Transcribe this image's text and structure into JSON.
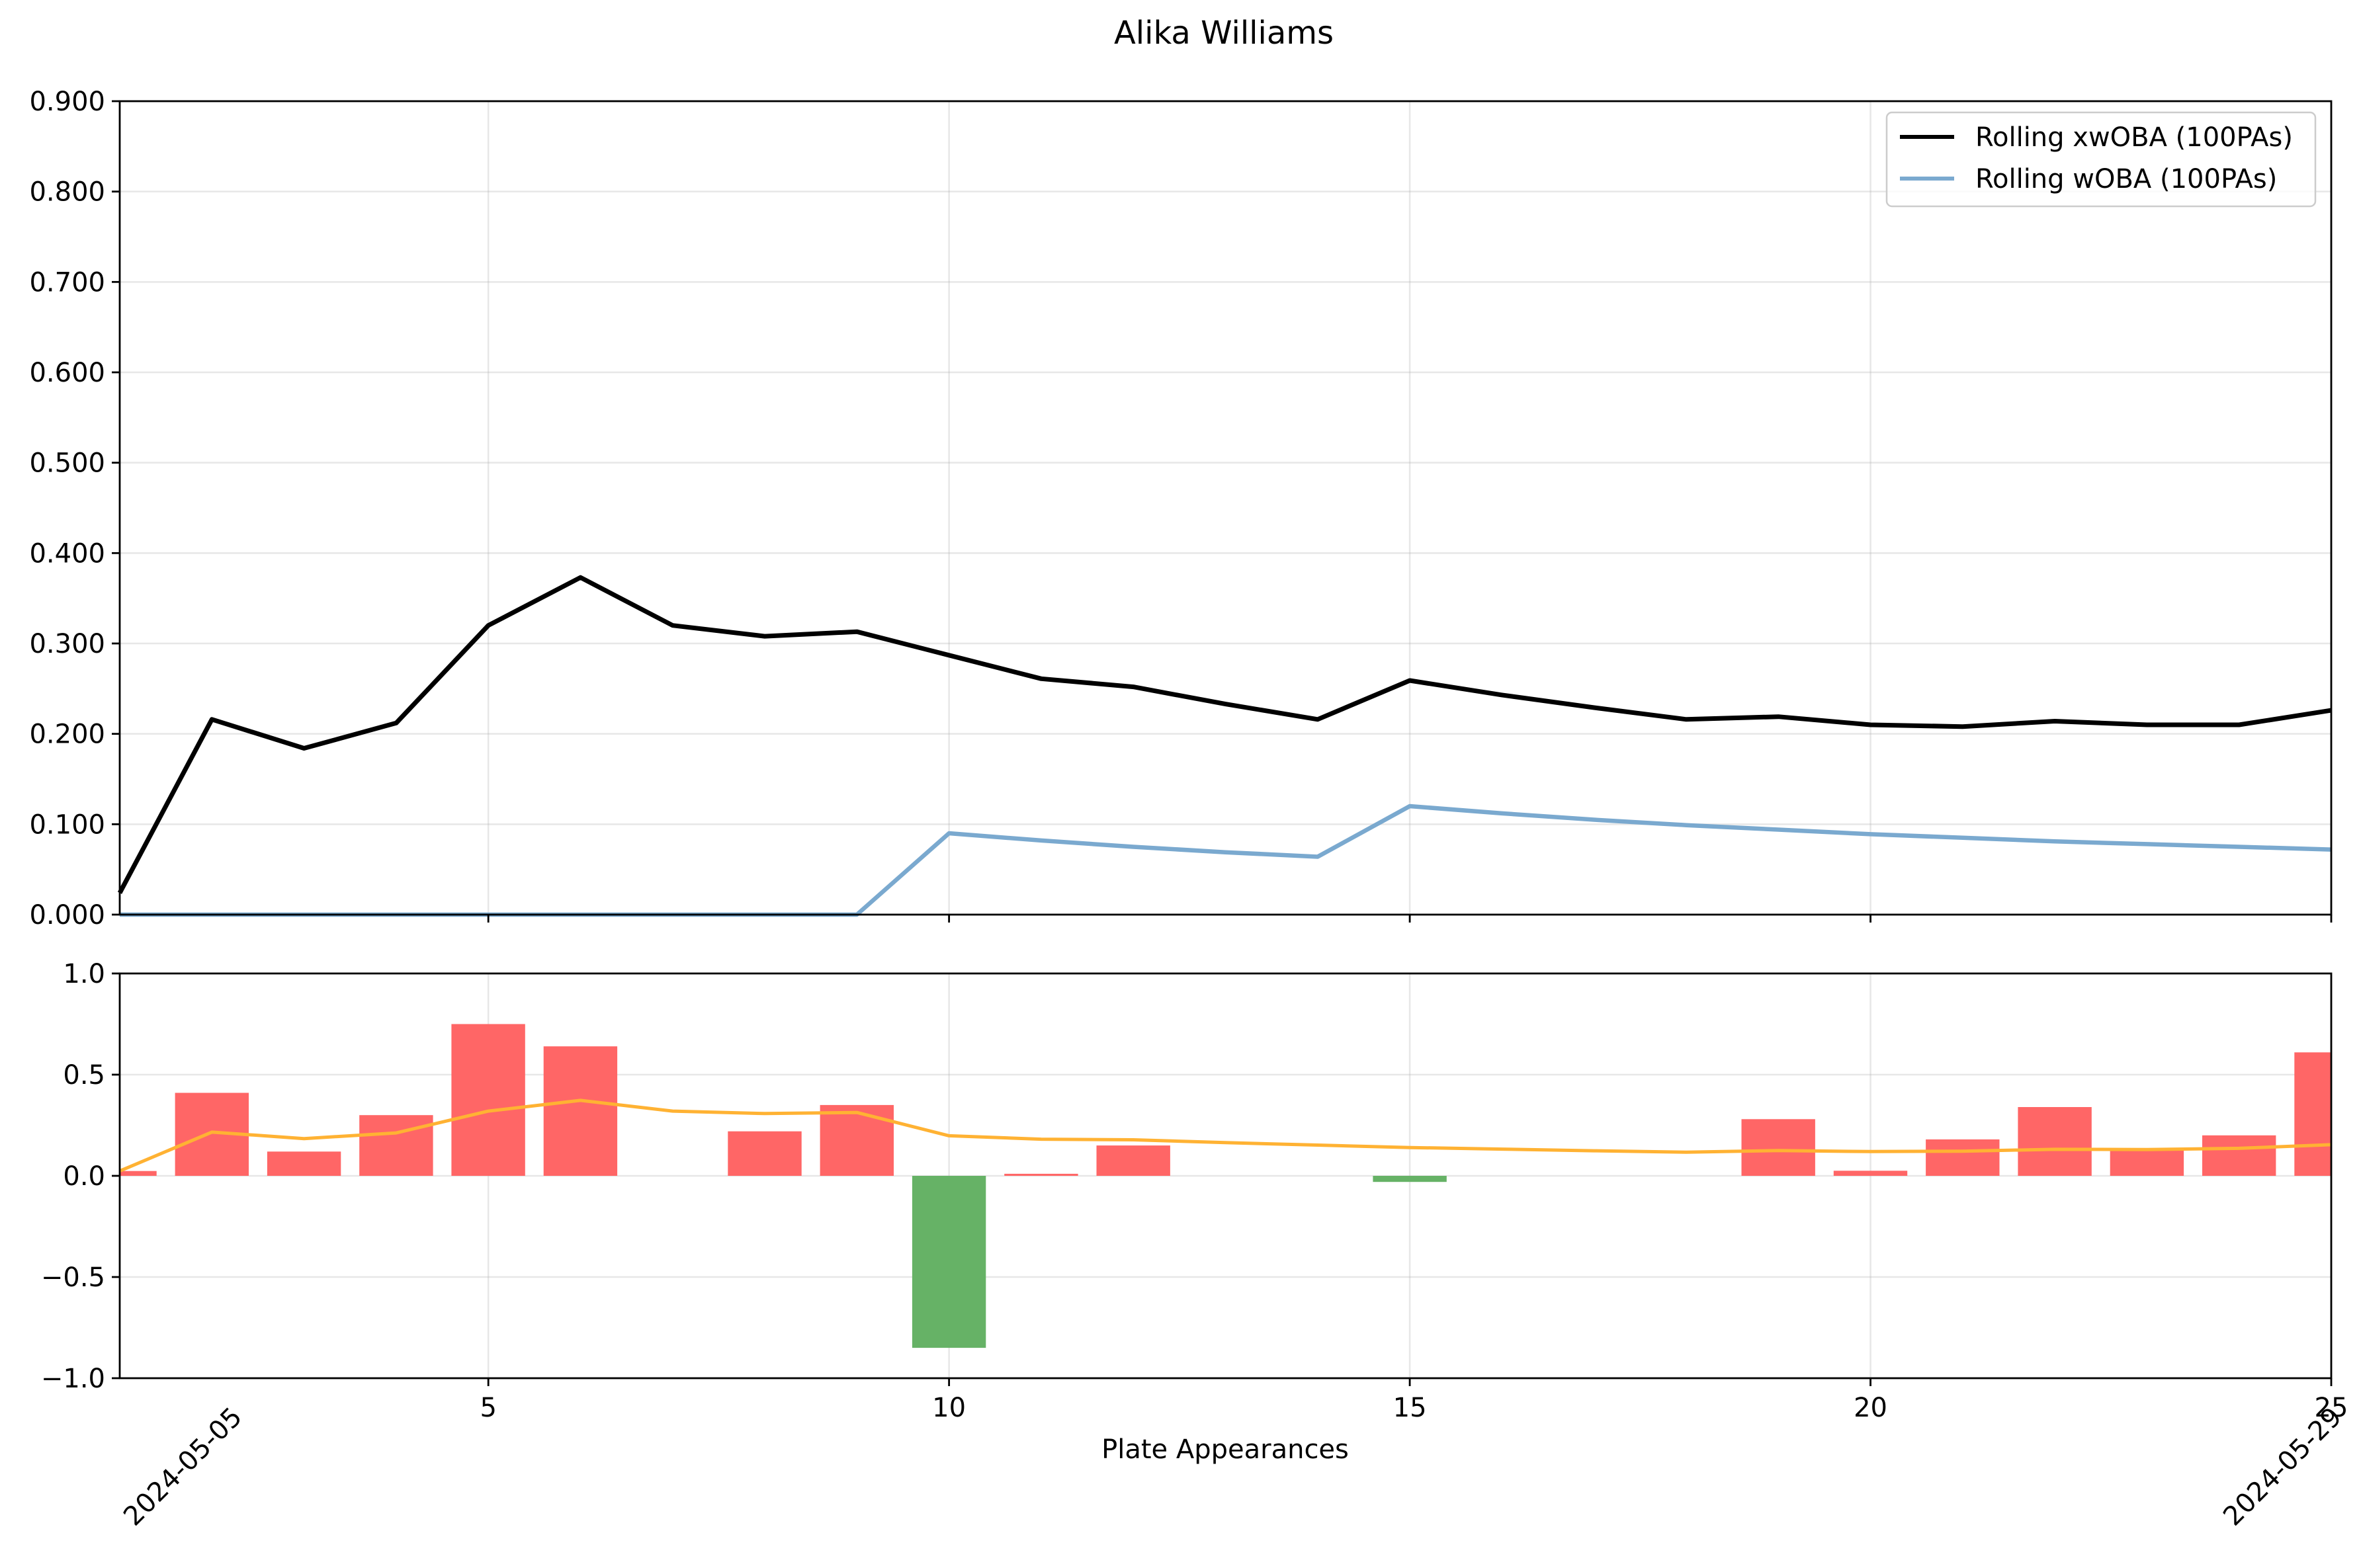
{
  "chart_data": [
    {
      "type": "line",
      "title": "Alika Williams",
      "xlim": [
        1,
        25
      ],
      "ylim": [
        0,
        0.9
      ],
      "yticks": [
        "0.000",
        "0.100",
        "0.200",
        "0.300",
        "0.400",
        "0.500",
        "0.600",
        "0.700",
        "0.800",
        "0.900"
      ],
      "xticks": [
        5,
        10,
        15,
        20,
        25
      ],
      "grid": true,
      "legend": "top-right",
      "x": [
        1,
        2,
        3,
        4,
        5,
        6,
        7,
        8,
        9,
        10,
        11,
        12,
        13,
        14,
        15,
        16,
        17,
        18,
        19,
        20,
        21,
        22,
        23,
        24,
        25
      ],
      "series": [
        {
          "name": "Rolling xwOBA (100PAs)",
          "color": "#000000",
          "values": [
            0.024,
            0.216,
            0.184,
            0.212,
            0.32,
            0.373,
            0.32,
            0.308,
            0.313,
            0.287,
            0.261,
            0.252,
            0.233,
            0.216,
            0.259,
            0.243,
            0.229,
            0.216,
            0.219,
            0.21,
            0.208,
            0.214,
            0.21,
            0.21,
            0.226
          ]
        },
        {
          "name": "Rolling wOBA (100PAs)",
          "color": "#7aa9cf",
          "values": [
            0,
            0,
            0,
            0,
            0,
            0,
            0,
            0,
            0,
            0.09,
            0.082,
            0.075,
            0.069,
            0.064,
            0.12,
            0.112,
            0.105,
            0.099,
            0.094,
            0.089,
            0.085,
            0.081,
            0.078,
            0.075,
            0.072
          ]
        }
      ]
    },
    {
      "type": "bar",
      "xlabel": "Plate Appearances",
      "xlim": [
        1,
        25
      ],
      "ylim": [
        -1.0,
        1.0
      ],
      "yticks": [
        "−1.0",
        "−0.5",
        "0.0",
        "0.5",
        "1.0"
      ],
      "xticks": [
        "5",
        "10",
        "15",
        "20",
        "25"
      ],
      "date_labels": [
        "2024-05-05",
        "2024-05-29"
      ],
      "grid": true,
      "positive_color": "#ff6666",
      "negative_color": "#66b266",
      "trend_color": "#ffb233",
      "x": [
        1,
        2,
        3,
        4,
        5,
        6,
        7,
        8,
        9,
        10,
        11,
        12,
        13,
        14,
        15,
        16,
        17,
        18,
        19,
        20,
        21,
        22,
        23,
        24,
        25
      ],
      "values": [
        0.024,
        0.41,
        0.12,
        0.3,
        0.75,
        0.64,
        0,
        0.22,
        0.35,
        -0.85,
        0.01,
        0.15,
        0,
        0,
        -0.03,
        0,
        0,
        0,
        0.28,
        0.025,
        0.18,
        0.34,
        0.13,
        0.2,
        0.61
      ],
      "trend": [
        0.024,
        0.216,
        0.184,
        0.212,
        0.32,
        0.373,
        0.32,
        0.308,
        0.313,
        0.198,
        0.181,
        0.178,
        0.164,
        0.152,
        0.14,
        0.132,
        0.124,
        0.117,
        0.125,
        0.12,
        0.122,
        0.131,
        0.13,
        0.136,
        0.154
      ]
    }
  ]
}
